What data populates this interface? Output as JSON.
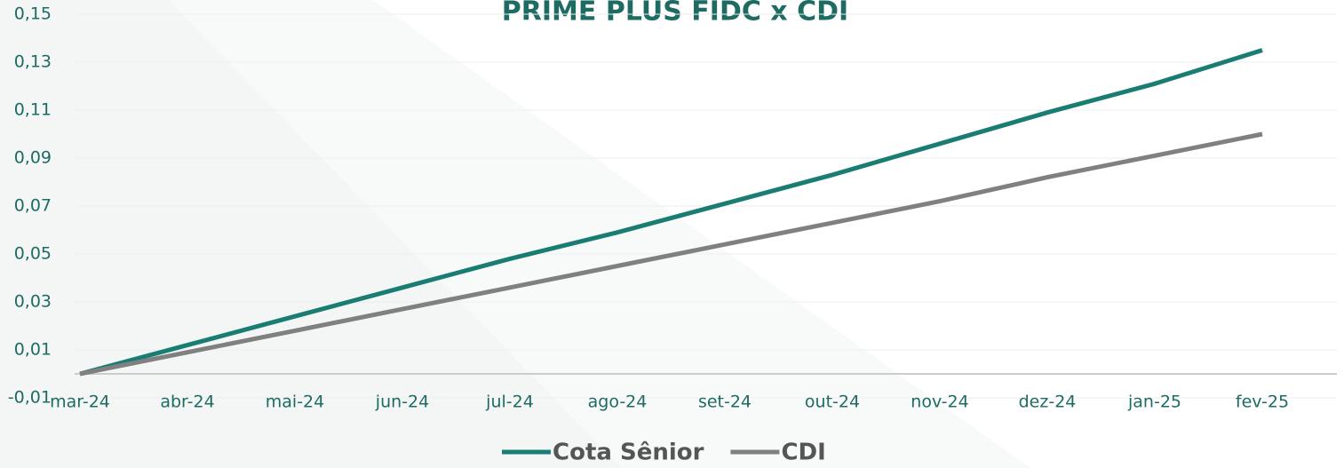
{
  "chart_data": {
    "type": "line",
    "title": "PRIME PLUS FIDC x CDI",
    "categories": [
      "mar-24",
      "abr-24",
      "mai-24",
      "jun-24",
      "jul-24",
      "ago-24",
      "set-24",
      "out-24",
      "nov-24",
      "dez-24",
      "jan-25",
      "fev-25"
    ],
    "series": [
      {
        "name": "Cota Sênior",
        "color": "#1a7d74",
        "values": [
          0,
          0.012,
          0.024,
          0.036,
          0.048,
          0.059,
          0.071,
          0.083,
          0.096,
          0.109,
          0.121,
          0.135
        ]
      },
      {
        "name": "CDI",
        "color": "#808080",
        "values": [
          0,
          0.009,
          0.018,
          0.027,
          0.036,
          0.045,
          0.054,
          0.063,
          0.072,
          0.082,
          0.091,
          0.1
        ]
      }
    ],
    "ylim": [
      -0.01,
      0.15
    ],
    "yticks": [
      {
        "value": -0.01,
        "label": "-0,01"
      },
      {
        "value": 0.01,
        "label": "0,01"
      },
      {
        "value": 0.03,
        "label": "0,03"
      },
      {
        "value": 0.05,
        "label": "0,05"
      },
      {
        "value": 0.07,
        "label": "0,07"
      },
      {
        "value": 0.09,
        "label": "0,09"
      },
      {
        "value": 0.11,
        "label": "0,11"
      },
      {
        "value": 0.13,
        "label": "0,13"
      },
      {
        "value": 0.15,
        "label": "0,15"
      }
    ],
    "grid": true,
    "legend": "bottom"
  }
}
